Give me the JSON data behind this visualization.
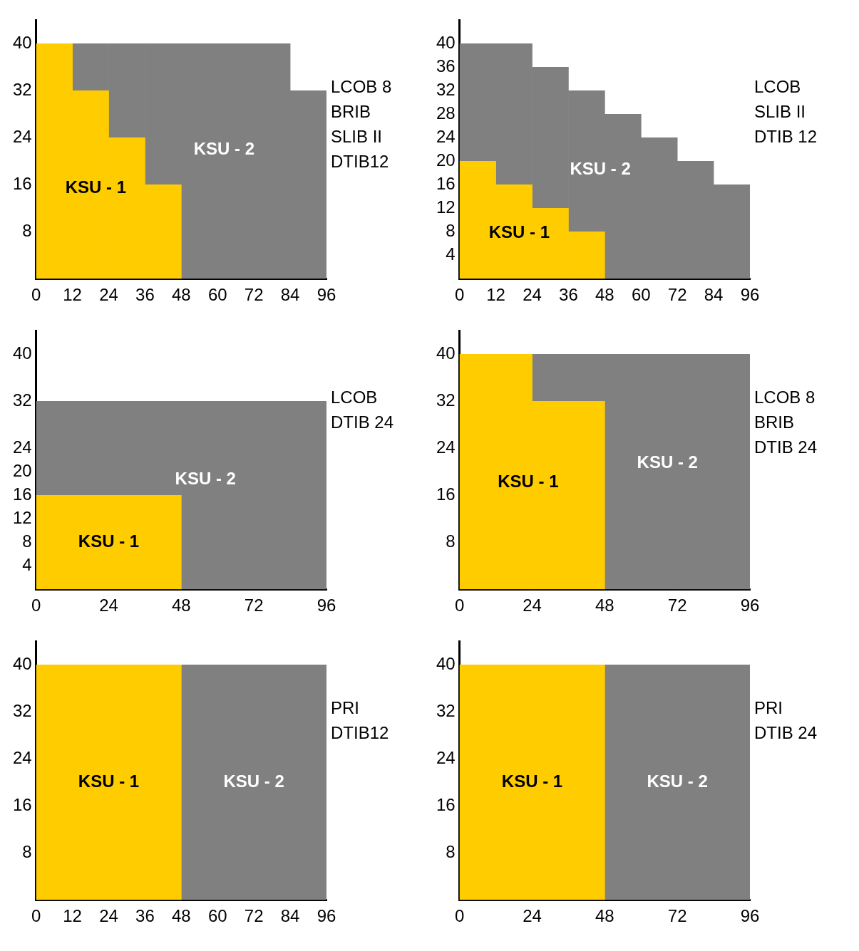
{
  "chart_data": [
    {
      "type": "bar",
      "stacked": true,
      "x": [
        6,
        18,
        30,
        42,
        54,
        66,
        78,
        90
      ],
      "series": [
        {
          "name": "KSU - 1",
          "color": "#ffcc00",
          "values": [
            40,
            32,
            24,
            16,
            0,
            0,
            0,
            0
          ]
        },
        {
          "name": "KSU - 2",
          "color": "#808080",
          "values": [
            0,
            8,
            16,
            24,
            40,
            40,
            40,
            32
          ]
        }
      ],
      "xlim": [
        0,
        96
      ],
      "xticks": [
        0,
        12,
        24,
        36,
        48,
        60,
        72,
        84,
        96
      ],
      "ylim": [
        0,
        44
      ],
      "yticks": [
        8,
        16,
        24,
        32,
        40
      ],
      "legend": false,
      "grid": false,
      "annotations": [
        "LCOB 8",
        "BRIB",
        "SLIB II",
        "DTIB12"
      ]
    },
    {
      "type": "bar",
      "stacked": true,
      "x": [
        6,
        18,
        30,
        42,
        54,
        66,
        78,
        90
      ],
      "series": [
        {
          "name": "KSU - 1",
          "color": "#ffcc00",
          "values": [
            20,
            16,
            12,
            8,
            0,
            0,
            0,
            0
          ]
        },
        {
          "name": "KSU - 2",
          "color": "#808080",
          "values": [
            20,
            24,
            24,
            24,
            28,
            24,
            20,
            16
          ]
        }
      ],
      "xlim": [
        0,
        96
      ],
      "xticks": [
        0,
        12,
        24,
        36,
        48,
        60,
        72,
        84,
        96
      ],
      "ylim": [
        0,
        44
      ],
      "yticks": [
        4,
        8,
        12,
        16,
        20,
        24,
        28,
        32,
        36,
        40
      ],
      "legend": false,
      "grid": false,
      "annotations": [
        "LCOB",
        "SLIB II",
        "DTIB 12"
      ]
    },
    {
      "type": "bar",
      "stacked": true,
      "x": [
        24,
        72
      ],
      "series": [
        {
          "name": "KSU - 1",
          "color": "#ffcc00",
          "values": [
            16,
            0
          ]
        },
        {
          "name": "KSU - 2",
          "color": "#808080",
          "values": [
            16,
            32
          ]
        }
      ],
      "xlim": [
        0,
        96
      ],
      "xticks": [
        0,
        24,
        48,
        72,
        96
      ],
      "ylim": [
        0,
        44
      ],
      "yticks": [
        4,
        8,
        12,
        16,
        20,
        24,
        32,
        40
      ],
      "legend": false,
      "grid": false,
      "annotations": [
        "LCOB",
        "DTIB 24"
      ]
    },
    {
      "type": "bar",
      "stacked": true,
      "x": [
        12,
        36,
        60,
        84
      ],
      "series": [
        {
          "name": "KSU - 1",
          "color": "#ffcc00",
          "values": [
            40,
            32,
            0,
            0
          ]
        },
        {
          "name": "KSU - 2",
          "color": "#808080",
          "values": [
            0,
            8,
            40,
            40
          ]
        }
      ],
      "xlim": [
        0,
        96
      ],
      "xticks": [
        0,
        24,
        48,
        72,
        96
      ],
      "ylim": [
        0,
        44
      ],
      "yticks": [
        8,
        16,
        24,
        32,
        40
      ],
      "legend": false,
      "grid": false,
      "annotations": [
        "LCOB 8",
        "BRIB",
        "DTIB 24"
      ]
    },
    {
      "type": "bar",
      "stacked": true,
      "x": [
        24,
        72
      ],
      "series": [
        {
          "name": "KSU - 1",
          "color": "#ffcc00",
          "values": [
            40,
            0
          ]
        },
        {
          "name": "KSU - 2",
          "color": "#808080",
          "values": [
            0,
            40
          ]
        }
      ],
      "xlim": [
        0,
        96
      ],
      "xticks": [
        0,
        12,
        24,
        36,
        48,
        60,
        72,
        84,
        96
      ],
      "ylim": [
        0,
        44
      ],
      "yticks": [
        8,
        16,
        24,
        32,
        40
      ],
      "legend": false,
      "grid": false,
      "annotations": [
        "PRI",
        "DTIB12"
      ]
    },
    {
      "type": "bar",
      "stacked": true,
      "x": [
        24,
        72
      ],
      "series": [
        {
          "name": "KSU - 1",
          "color": "#ffcc00",
          "values": [
            40,
            0
          ]
        },
        {
          "name": "KSU - 2",
          "color": "#808080",
          "values": [
            0,
            40
          ]
        }
      ],
      "xlim": [
        0,
        96
      ],
      "xticks": [
        0,
        24,
        48,
        72,
        96
      ],
      "ylim": [
        0,
        44
      ],
      "yticks": [
        8,
        16,
        24,
        32,
        40
      ],
      "legend": false,
      "grid": false,
      "annotations": [
        "PRI",
        "DTIB 24"
      ]
    }
  ]
}
